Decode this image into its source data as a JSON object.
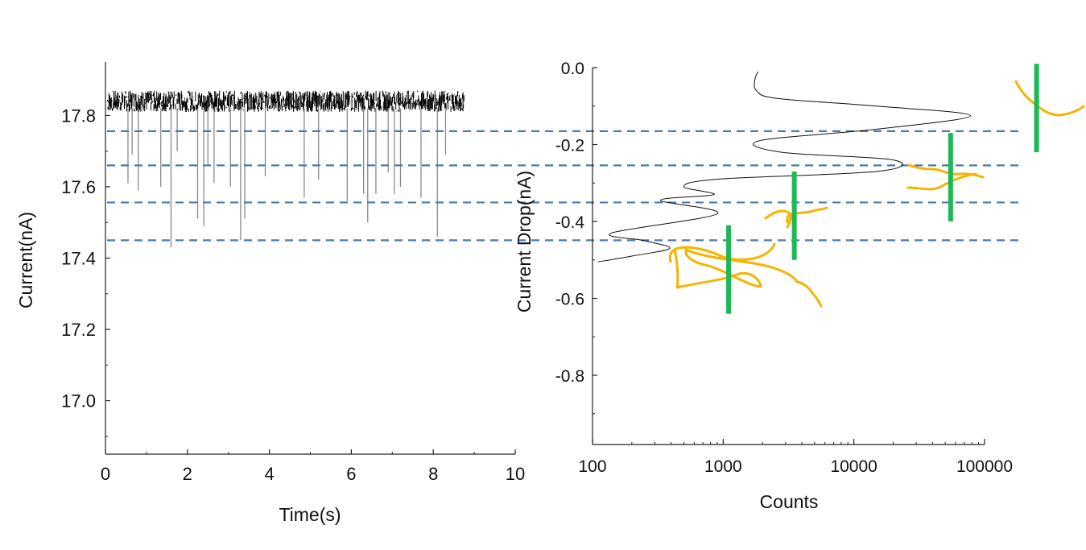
{
  "chart_data": [
    {
      "type": "line",
      "xlabel": "Time(s)",
      "ylabel": "Current(nA)",
      "xlim": [
        0,
        10
      ],
      "ylim": [
        16.85,
        17.95
      ],
      "xticks": [
        0,
        2,
        4,
        6,
        8,
        10
      ],
      "yticks": [
        17.0,
        17.2,
        17.4,
        17.6,
        17.8
      ],
      "xtick_labels": [
        "0",
        "2",
        "4",
        "6",
        "8",
        "10"
      ],
      "ytick_labels": [
        "17.0",
        "17.2",
        "17.4",
        "17.6",
        "17.8"
      ],
      "baseline": {
        "x_start": 0.05,
        "x_end": 8.75,
        "center": 17.84,
        "noise_amplitude": 0.03
      },
      "events": [
        {
          "t": 0.55,
          "y": 17.61
        },
        {
          "t": 0.65,
          "y": 17.69
        },
        {
          "t": 0.8,
          "y": 17.59
        },
        {
          "t": 1.35,
          "y": 17.6
        },
        {
          "t": 1.6,
          "y": 17.43
        },
        {
          "t": 1.75,
          "y": 17.7
        },
        {
          "t": 2.25,
          "y": 17.51
        },
        {
          "t": 2.4,
          "y": 17.49
        },
        {
          "t": 2.5,
          "y": 17.66
        },
        {
          "t": 2.65,
          "y": 17.61
        },
        {
          "t": 3.05,
          "y": 17.6
        },
        {
          "t": 3.3,
          "y": 17.45
        },
        {
          "t": 3.4,
          "y": 17.51
        },
        {
          "t": 3.9,
          "y": 17.63
        },
        {
          "t": 4.85,
          "y": 17.57
        },
        {
          "t": 5.2,
          "y": 17.62
        },
        {
          "t": 5.9,
          "y": 17.56
        },
        {
          "t": 6.3,
          "y": 17.58
        },
        {
          "t": 6.4,
          "y": 17.5
        },
        {
          "t": 6.6,
          "y": 17.58
        },
        {
          "t": 6.9,
          "y": 17.64
        },
        {
          "t": 7.05,
          "y": 17.58
        },
        {
          "t": 7.2,
          "y": 17.6
        },
        {
          "t": 7.7,
          "y": 17.57
        },
        {
          "t": 8.1,
          "y": 17.46
        },
        {
          "t": 8.3,
          "y": 17.69
        }
      ]
    },
    {
      "type": "line",
      "xlabel": "Counts",
      "ylabel": "Current Drop(nA)",
      "xscale": "log",
      "xlim": [
        100,
        100000
      ],
      "ylim": [
        -0.98,
        0
      ],
      "xticks": [
        100,
        1000,
        10000,
        100000
      ],
      "yticks": [
        0,
        -0.2,
        -0.4,
        -0.6,
        -0.8
      ],
      "xtick_labels": [
        "100",
        "1000",
        "10000",
        "100000"
      ],
      "ytick_labels": [
        "0.0",
        "-0.2",
        "-0.4",
        "-0.6",
        "-0.8"
      ],
      "series": [
        {
          "x": [
            1850,
            1750,
            1800,
            2600,
            15000,
            78000,
            15000,
            1900,
            2800,
            20000,
            15000,
            900,
            500,
            850,
            330,
            900,
            140,
            250,
            390,
            200,
            110
          ],
          "y": [
            -0.01,
            -0.03,
            -0.06,
            -0.08,
            -0.1,
            -0.125,
            -0.16,
            -0.19,
            -0.22,
            -0.24,
            -0.27,
            -0.29,
            -0.31,
            -0.33,
            -0.345,
            -0.38,
            -0.43,
            -0.45,
            -0.47,
            -0.49,
            -0.505
          ]
        }
      ],
      "peak_markers": [
        {
          "count": 1100,
          "y_min": -0.64,
          "y_max": -0.41
        },
        {
          "count": 3500,
          "y_min": -0.5,
          "y_max": -0.27
        },
        {
          "count": 55000,
          "y_min": -0.4,
          "y_max": -0.17
        },
        {
          "count": 250000,
          "y_min": -0.22,
          "y_max": 0.01
        }
      ],
      "reference_levels": [
        17.756,
        17.66,
        17.556,
        17.45
      ]
    }
  ]
}
